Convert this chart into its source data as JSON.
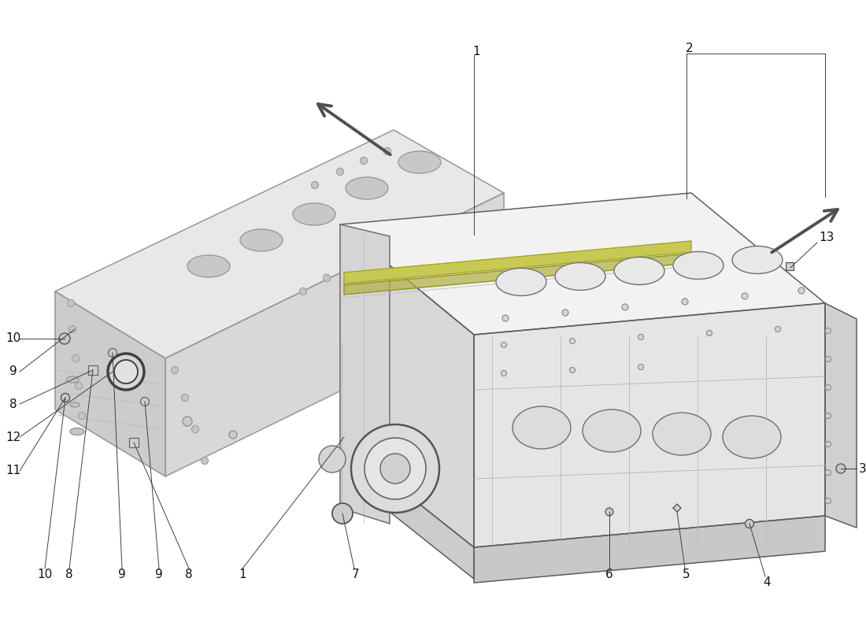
{
  "bg_color": "#ffffff",
  "line_color": "#606060",
  "wm_color": "#e8e8c0",
  "label_color": "#111111",
  "label_fs": 11,
  "fig_w": 11.0,
  "fig_h": 8.0,
  "dpi": 100
}
